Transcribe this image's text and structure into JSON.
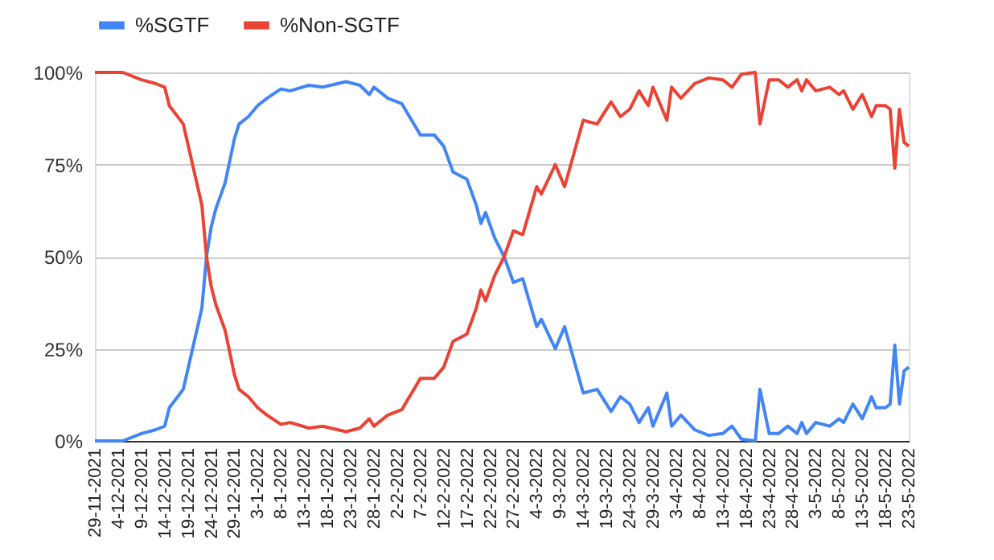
{
  "chart_data": {
    "type": "line",
    "x": [
      "2021-11-29",
      "2021-12-05",
      "2021-12-09",
      "2021-12-12",
      "2021-12-14",
      "2021-12-15",
      "2021-12-18",
      "2021-12-20",
      "2021-12-22",
      "2021-12-23",
      "2021-12-24",
      "2021-12-25",
      "2021-12-27",
      "2021-12-29",
      "2021-12-30",
      "2022-01-01",
      "2022-01-03",
      "2022-01-05",
      "2022-01-08",
      "2022-01-10",
      "2022-01-14",
      "2022-01-17",
      "2022-01-22",
      "2022-01-25",
      "2022-01-27",
      "2022-01-28",
      "2022-01-31",
      "2022-02-03",
      "2022-02-07",
      "2022-02-10",
      "2022-02-12",
      "2022-02-14",
      "2022-02-17",
      "2022-02-19",
      "2022-02-20",
      "2022-02-21",
      "2022-02-23",
      "2022-02-25",
      "2022-02-27",
      "2022-03-01",
      "2022-03-04",
      "2022-03-05",
      "2022-03-08",
      "2022-03-10",
      "2022-03-14",
      "2022-03-17",
      "2022-03-20",
      "2022-03-22",
      "2022-03-24",
      "2022-03-26",
      "2022-03-28",
      "2022-03-29",
      "2022-04-01",
      "2022-04-02",
      "2022-04-04",
      "2022-04-07",
      "2022-04-10",
      "2022-04-13",
      "2022-04-15",
      "2022-04-17",
      "2022-04-20",
      "2022-04-21",
      "2022-04-23",
      "2022-04-25",
      "2022-04-27",
      "2022-04-29",
      "2022-04-30",
      "2022-05-01",
      "2022-05-03",
      "2022-05-06",
      "2022-05-08",
      "2022-05-09",
      "2022-05-11",
      "2022-05-13",
      "2022-05-15",
      "2022-05-16",
      "2022-05-18",
      "2022-05-19",
      "2022-05-20",
      "2022-05-21",
      "2022-05-22",
      "2022-05-23"
    ],
    "series": [
      {
        "name": "%SGTF",
        "color": "#4285f4",
        "values": [
          0,
          0,
          2,
          3,
          4,
          9,
          14,
          25,
          36,
          50,
          58,
          63,
          70,
          82,
          86,
          88,
          91,
          93,
          95.5,
          95,
          96.5,
          96,
          97.5,
          96.5,
          94,
          96,
          93,
          91.5,
          83,
          83,
          80,
          73,
          71,
          64,
          59,
          62,
          55,
          50,
          43,
          44,
          31,
          33,
          25,
          31,
          13,
          14,
          8,
          12,
          10,
          5,
          9,
          4,
          13,
          4,
          7,
          3,
          1.5,
          2,
          4,
          0.5,
          0,
          14,
          2,
          2,
          4,
          2,
          5,
          2,
          5,
          4,
          6,
          5,
          10,
          6,
          12,
          9,
          9,
          10,
          26,
          10,
          19,
          20
        ]
      },
      {
        "name": "%Non-SGTF",
        "color": "#ea4335",
        "values": [
          100,
          100,
          98,
          97,
          96,
          91,
          86,
          75,
          64,
          50,
          42,
          37,
          30,
          18,
          14,
          12,
          9,
          7,
          4.5,
          5,
          3.5,
          4,
          2.5,
          3.5,
          6,
          4,
          7,
          8.5,
          17,
          17,
          20,
          27,
          29,
          36,
          41,
          38,
          45,
          50,
          57,
          56,
          69,
          67,
          75,
          69,
          87,
          86,
          92,
          88,
          90,
          95,
          91,
          96,
          87,
          96,
          93,
          97,
          98.5,
          98,
          96,
          99.5,
          100,
          86,
          98,
          98,
          96,
          98,
          95,
          98,
          95,
          96,
          94,
          95,
          90,
          94,
          88,
          91,
          91,
          90,
          74,
          90,
          81,
          80
        ]
      }
    ],
    "xlim": [
      "2021-11-29",
      "2022-05-23"
    ],
    "xticks": [
      {
        "value": "2021-11-29",
        "label": "29-11-2021"
      },
      {
        "value": "2021-12-04",
        "label": "4-12-2021"
      },
      {
        "value": "2021-12-09",
        "label": "9-12-2021"
      },
      {
        "value": "2021-12-14",
        "label": "14-12-2021"
      },
      {
        "value": "2021-12-19",
        "label": "19-12-2021"
      },
      {
        "value": "2021-12-24",
        "label": "24-12-2021"
      },
      {
        "value": "2021-12-29",
        "label": "29-12-2021"
      },
      {
        "value": "2022-01-03",
        "label": "3-1-2022"
      },
      {
        "value": "2022-01-08",
        "label": "8-1-2022"
      },
      {
        "value": "2022-01-13",
        "label": "13-1-2022"
      },
      {
        "value": "2022-01-18",
        "label": "18-1-2022"
      },
      {
        "value": "2022-01-23",
        "label": "23-1-2022"
      },
      {
        "value": "2022-01-28",
        "label": "28-1-2022"
      },
      {
        "value": "2022-02-02",
        "label": "2-2-2022"
      },
      {
        "value": "2022-02-07",
        "label": "7-2-2022"
      },
      {
        "value": "2022-02-12",
        "label": "12-2-2022"
      },
      {
        "value": "2022-02-17",
        "label": "17-2-2022"
      },
      {
        "value": "2022-02-22",
        "label": "22-2-2022"
      },
      {
        "value": "2022-02-27",
        "label": "27-2-2022"
      },
      {
        "value": "2022-03-04",
        "label": "4-3-2022"
      },
      {
        "value": "2022-03-09",
        "label": "9-3-2022"
      },
      {
        "value": "2022-03-14",
        "label": "14-3-2022"
      },
      {
        "value": "2022-03-19",
        "label": "19-3-2022"
      },
      {
        "value": "2022-03-24",
        "label": "24-3-2022"
      },
      {
        "value": "2022-03-29",
        "label": "29-3-2022"
      },
      {
        "value": "2022-04-03",
        "label": "3-4-2022"
      },
      {
        "value": "2022-04-08",
        "label": "8-4-2022"
      },
      {
        "value": "2022-04-13",
        "label": "13-4-2022"
      },
      {
        "value": "2022-04-18",
        "label": "18-4-2022"
      },
      {
        "value": "2022-04-23",
        "label": "23-4-2022"
      },
      {
        "value": "2022-04-28",
        "label": "28-4-2022"
      },
      {
        "value": "2022-05-03",
        "label": "3-5-2022"
      },
      {
        "value": "2022-05-08",
        "label": "8-5-2022"
      },
      {
        "value": "2022-05-13",
        "label": "13-5-2022"
      },
      {
        "value": "2022-05-18",
        "label": "18-5-2022"
      },
      {
        "value": "2022-05-23",
        "label": "23-5-2022"
      }
    ],
    "ylim": [
      0,
      100
    ],
    "yticks": [
      {
        "value": 0,
        "label": "0%"
      },
      {
        "value": 25,
        "label": "25%"
      },
      {
        "value": 50,
        "label": "50%"
      },
      {
        "value": 75,
        "label": "75%"
      },
      {
        "value": 100,
        "label": "100%"
      }
    ],
    "grid": "y",
    "legend": "top",
    "marker": "none",
    "line_style": "solid"
  }
}
